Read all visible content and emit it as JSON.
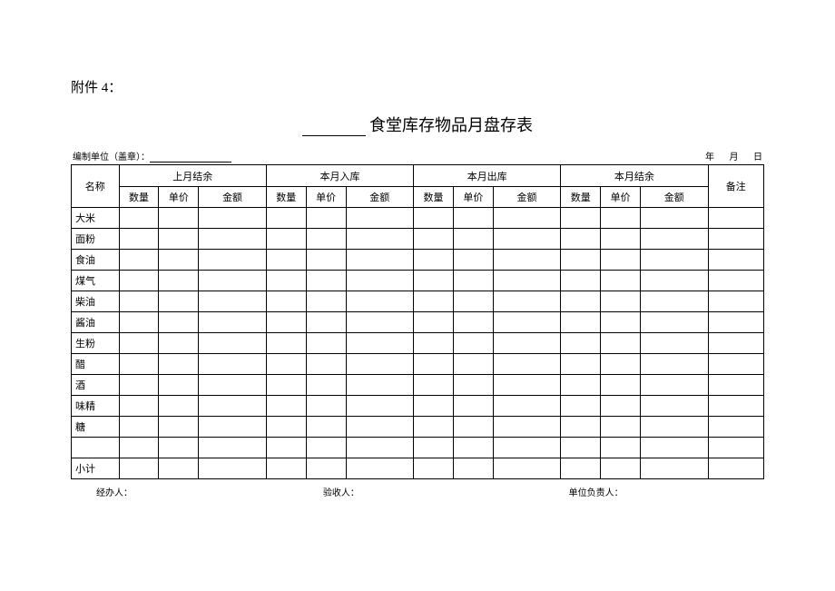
{
  "attachment_label": "附件 4：",
  "title": "食堂库存物品月盘存表",
  "meta": {
    "org_label": "编制单位（盖章）：",
    "date_year": "年",
    "date_month": "月",
    "date_day": "日"
  },
  "headers": {
    "name": "名称",
    "remark": "备注",
    "groups": [
      "上月结余",
      "本月入库",
      "本月出库",
      "本月结余"
    ],
    "sub": {
      "qty": "数量",
      "price": "单价",
      "amt": "金额"
    }
  },
  "rows": [
    "大米",
    "面粉",
    "食油",
    "煤气",
    "柴油",
    "酱油",
    "生粉",
    "醋",
    "酒",
    "味精",
    "糖",
    "",
    "小计"
  ],
  "footer": {
    "handler": "经办人：",
    "checker": "验收人：",
    "leader": "单位负责人："
  }
}
